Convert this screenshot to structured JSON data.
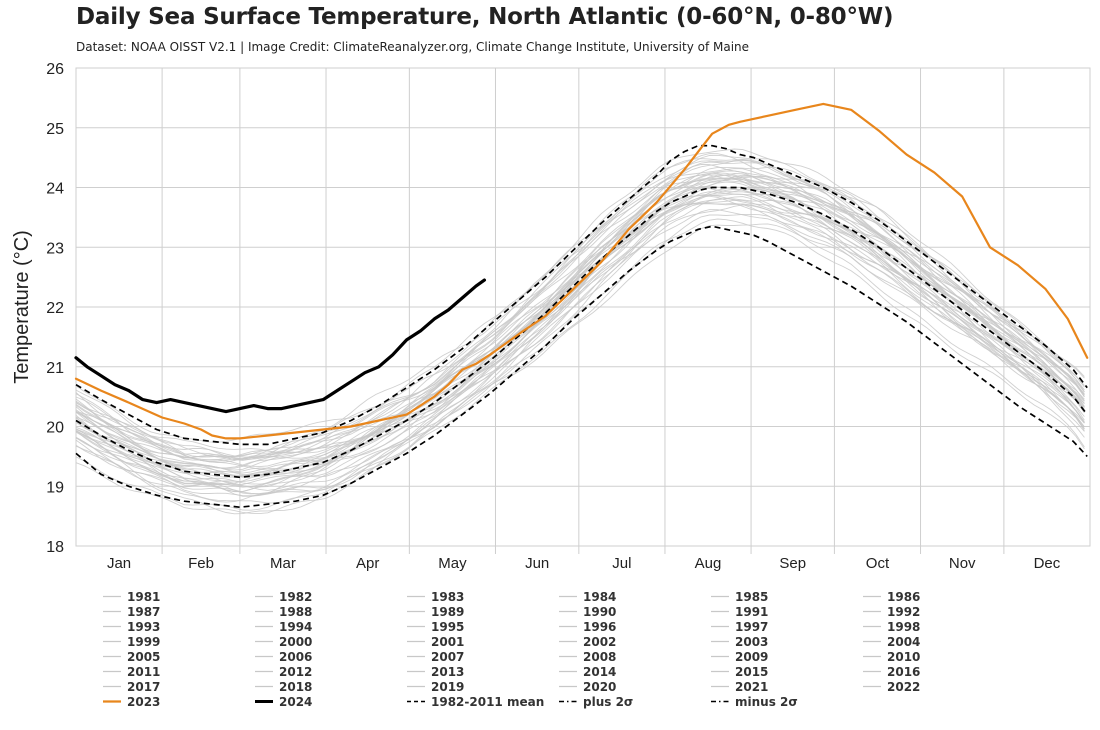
{
  "chart_data": {
    "type": "line",
    "title": "Daily Sea Surface Temperature, North Atlantic (0-60°N, 0-80°W)",
    "subtitle": "Dataset: NOAA OISST V2.1 | Image Credit: ClimateReanalyzer.org, Climate Change Institute, University of Maine",
    "ylabel": "Temperature (°C)",
    "xlabel": "",
    "ylim": [
      18,
      26
    ],
    "xlim": [
      1,
      366
    ],
    "yticks": [
      18,
      19,
      20,
      21,
      22,
      23,
      24,
      25,
      26
    ],
    "month_labels": [
      "Jan",
      "Feb",
      "Mar",
      "Apr",
      "May",
      "Jun",
      "Jul",
      "Aug",
      "Sep",
      "Oct",
      "Nov",
      "Dec"
    ],
    "grid": true,
    "legend_position": "bottom",
    "colors": {
      "years": "#c8c8c8",
      "y2023": "#e8861c",
      "y2024": "#000000",
      "stats": "#000000",
      "grid": "#cfcfcf"
    },
    "year_series": [
      "1981",
      "1982",
      "1983",
      "1984",
      "1985",
      "1986",
      "1987",
      "1988",
      "1989",
      "1990",
      "1991",
      "1992",
      "1993",
      "1994",
      "1995",
      "1996",
      "1997",
      "1998",
      "1999",
      "2000",
      "2001",
      "2002",
      "2003",
      "2004",
      "2005",
      "2006",
      "2007",
      "2008",
      "2009",
      "2010",
      "2011",
      "2012",
      "2013",
      "2014",
      "2015",
      "2016",
      "2017",
      "2018",
      "2019",
      "2020",
      "2021",
      "2022"
    ],
    "series": [
      {
        "name": "2023",
        "style": "orange",
        "x": [
          1,
          10,
          20,
          32,
          40,
          46,
          50,
          55,
          60,
          70,
          80,
          90,
          100,
          110,
          120,
          125,
          130,
          135,
          140,
          145,
          150,
          156,
          162,
          170,
          180,
          190,
          200,
          210,
          220,
          225,
          230,
          236,
          240,
          245,
          250,
          260,
          270,
          280,
          290,
          300,
          310,
          320,
          330,
          340,
          350,
          358,
          365
        ],
        "y": [
          20.8,
          20.6,
          20.4,
          20.15,
          20.05,
          19.95,
          19.85,
          19.8,
          19.8,
          19.85,
          19.9,
          19.95,
          20.0,
          20.1,
          20.2,
          20.35,
          20.5,
          20.7,
          20.95,
          21.05,
          21.2,
          21.4,
          21.6,
          21.85,
          22.3,
          22.75,
          23.3,
          23.75,
          24.3,
          24.6,
          24.9,
          25.05,
          25.1,
          25.15,
          25.2,
          25.3,
          25.4,
          25.3,
          24.95,
          24.55,
          24.25,
          23.85,
          23.0,
          22.7,
          22.3,
          21.8,
          21.15
        ]
      },
      {
        "name": "2024",
        "style": "black",
        "x": [
          1,
          5,
          10,
          15,
          20,
          25,
          30,
          35,
          40,
          45,
          50,
          55,
          60,
          65,
          70,
          75,
          80,
          85,
          90,
          95,
          100,
          105,
          110,
          115,
          120,
          125,
          130,
          135,
          140,
          145,
          148
        ],
        "y": [
          21.15,
          21.0,
          20.85,
          20.7,
          20.6,
          20.45,
          20.4,
          20.45,
          20.4,
          20.35,
          20.3,
          20.25,
          20.3,
          20.35,
          20.3,
          20.3,
          20.35,
          20.4,
          20.45,
          20.6,
          20.75,
          20.9,
          21.0,
          21.2,
          21.45,
          21.6,
          21.8,
          21.95,
          22.15,
          22.35,
          22.45
        ]
      },
      {
        "name": "1982-2011 mean",
        "style": "dash",
        "x": [
          1,
          10,
          20,
          30,
          40,
          50,
          60,
          70,
          80,
          90,
          100,
          110,
          120,
          130,
          140,
          150,
          160,
          170,
          180,
          190,
          200,
          210,
          215,
          220,
          225,
          230,
          235,
          240,
          245,
          250,
          260,
          270,
          280,
          290,
          300,
          310,
          320,
          330,
          340,
          350,
          360,
          365
        ],
        "y": [
          20.1,
          19.85,
          19.6,
          19.4,
          19.25,
          19.2,
          19.15,
          19.2,
          19.3,
          19.4,
          19.6,
          19.85,
          20.1,
          20.4,
          20.75,
          21.1,
          21.5,
          21.9,
          22.35,
          22.8,
          23.2,
          23.6,
          23.75,
          23.85,
          23.95,
          24.0,
          24.0,
          24.0,
          23.95,
          23.9,
          23.75,
          23.55,
          23.3,
          23.0,
          22.65,
          22.3,
          21.95,
          21.6,
          21.25,
          20.9,
          20.5,
          20.2
        ]
      },
      {
        "name": "plus 2σ",
        "style": "dash",
        "x": [
          1,
          10,
          20,
          30,
          40,
          50,
          60,
          70,
          80,
          90,
          100,
          110,
          120,
          130,
          140,
          150,
          160,
          170,
          180,
          190,
          200,
          210,
          215,
          220,
          225,
          230,
          235,
          240,
          245,
          250,
          260,
          270,
          280,
          290,
          300,
          310,
          320,
          330,
          340,
          350,
          360,
          365
        ],
        "y": [
          20.7,
          20.45,
          20.2,
          19.95,
          19.8,
          19.75,
          19.7,
          19.7,
          19.8,
          19.9,
          20.1,
          20.35,
          20.65,
          20.95,
          21.3,
          21.7,
          22.1,
          22.5,
          22.95,
          23.4,
          23.8,
          24.2,
          24.45,
          24.6,
          24.7,
          24.7,
          24.65,
          24.55,
          24.5,
          24.4,
          24.2,
          24.0,
          23.75,
          23.45,
          23.1,
          22.75,
          22.4,
          22.05,
          21.7,
          21.35,
          20.95,
          20.65
        ]
      },
      {
        "name": "minus 2σ",
        "style": "dash",
        "x": [
          1,
          10,
          20,
          30,
          40,
          50,
          60,
          70,
          80,
          90,
          100,
          110,
          120,
          130,
          140,
          150,
          160,
          170,
          180,
          190,
          200,
          210,
          215,
          220,
          225,
          230,
          235,
          240,
          245,
          250,
          260,
          270,
          280,
          290,
          300,
          310,
          320,
          330,
          340,
          350,
          360,
          365
        ],
        "y": [
          19.55,
          19.2,
          19.0,
          18.85,
          18.75,
          18.7,
          18.65,
          18.7,
          18.75,
          18.85,
          19.05,
          19.3,
          19.55,
          19.85,
          20.2,
          20.55,
          20.95,
          21.35,
          21.8,
          22.2,
          22.6,
          22.95,
          23.1,
          23.2,
          23.3,
          23.35,
          23.3,
          23.25,
          23.2,
          23.1,
          22.85,
          22.6,
          22.35,
          22.05,
          21.75,
          21.4,
          21.05,
          20.7,
          20.35,
          20.05,
          19.75,
          19.5
        ]
      }
    ],
    "legend": [
      {
        "label": "1981",
        "style": "gray"
      },
      {
        "label": "1982",
        "style": "gray"
      },
      {
        "label": "1983",
        "style": "gray"
      },
      {
        "label": "1984",
        "style": "gray"
      },
      {
        "label": "1985",
        "style": "gray"
      },
      {
        "label": "1986",
        "style": "gray"
      },
      {
        "label": "1987",
        "style": "gray"
      },
      {
        "label": "1988",
        "style": "gray"
      },
      {
        "label": "1989",
        "style": "gray"
      },
      {
        "label": "1990",
        "style": "gray"
      },
      {
        "label": "1991",
        "style": "gray"
      },
      {
        "label": "1992",
        "style": "gray"
      },
      {
        "label": "1993",
        "style": "gray"
      },
      {
        "label": "1994",
        "style": "gray"
      },
      {
        "label": "1995",
        "style": "gray"
      },
      {
        "label": "1996",
        "style": "gray"
      },
      {
        "label": "1997",
        "style": "gray"
      },
      {
        "label": "1998",
        "style": "gray"
      },
      {
        "label": "1999",
        "style": "gray"
      },
      {
        "label": "2000",
        "style": "gray"
      },
      {
        "label": "2001",
        "style": "gray"
      },
      {
        "label": "2002",
        "style": "gray"
      },
      {
        "label": "2003",
        "style": "gray"
      },
      {
        "label": "2004",
        "style": "gray"
      },
      {
        "label": "2005",
        "style": "gray"
      },
      {
        "label": "2006",
        "style": "gray"
      },
      {
        "label": "2007",
        "style": "gray"
      },
      {
        "label": "2008",
        "style": "gray"
      },
      {
        "label": "2009",
        "style": "gray"
      },
      {
        "label": "2010",
        "style": "gray"
      },
      {
        "label": "2011",
        "style": "gray"
      },
      {
        "label": "2012",
        "style": "gray"
      },
      {
        "label": "2013",
        "style": "gray"
      },
      {
        "label": "2014",
        "style": "gray"
      },
      {
        "label": "2015",
        "style": "gray"
      },
      {
        "label": "2016",
        "style": "gray"
      },
      {
        "label": "2017",
        "style": "gray"
      },
      {
        "label": "2018",
        "style": "gray"
      },
      {
        "label": "2019",
        "style": "gray"
      },
      {
        "label": "2020",
        "style": "gray"
      },
      {
        "label": "2021",
        "style": "gray"
      },
      {
        "label": "2022",
        "style": "gray"
      },
      {
        "label": "2023",
        "style": "orange"
      },
      {
        "label": "2024",
        "style": "black"
      },
      {
        "label": "1982-2011 mean",
        "style": "dash"
      },
      {
        "label": "plus 2σ",
        "style": "dashdot"
      },
      {
        "label": "minus 2σ",
        "style": "dashdot"
      }
    ]
  }
}
